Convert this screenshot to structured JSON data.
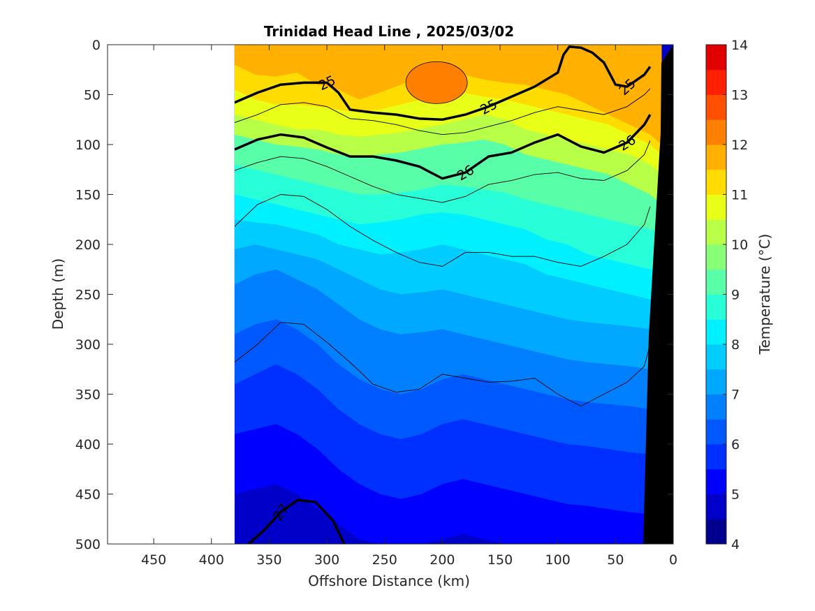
{
  "chart_data": {
    "type": "contour",
    "title": "Trinidad Head Line , 2025/03/02",
    "xlabel": "Offshore Distance (km)",
    "ylabel": "Depth (m)",
    "xlim": [
      490,
      0
    ],
    "ylim": [
      0,
      500
    ],
    "x_reversed": true,
    "y_reversed": true,
    "x_ticks": [
      450,
      400,
      350,
      300,
      250,
      200,
      150,
      100,
      50,
      0
    ],
    "y_ticks": [
      0,
      50,
      100,
      150,
      200,
      250,
      300,
      350,
      400,
      450,
      500
    ],
    "data_extent_x": [
      380,
      0
    ],
    "colorbar": {
      "label": "Temperature (°C)",
      "min": 4,
      "max": 14,
      "ticks": [
        4,
        5,
        6,
        7,
        8,
        9,
        10,
        11,
        12,
        13,
        14
      ],
      "levels": [
        4,
        4.5,
        5,
        5.5,
        6,
        6.5,
        7,
        7.5,
        8,
        8.5,
        9,
        9.5,
        10,
        10.5,
        11,
        11.5,
        12,
        12.5,
        13,
        13.5,
        14
      ],
      "colors": [
        "#00008f",
        "#0000c8",
        "#0000ff",
        "#0030ff",
        "#0058ff",
        "#0080ff",
        "#00a8ff",
        "#00ccff",
        "#00f0ff",
        "#28ffd8",
        "#58ffa8",
        "#88ff78",
        "#b8ff48",
        "#e8ff18",
        "#ffdc00",
        "#ffb000",
        "#ff8000",
        "#ff5000",
        "#ff2000",
        "#e00000",
        "#a00000"
      ]
    },
    "temperature_boundaries": [
      {
        "value": 11.5,
        "depths": [
          20,
          30,
          32,
          28,
          40,
          45,
          55,
          48,
          40,
          30,
          25,
          30,
          35,
          38,
          40,
          45,
          50,
          60,
          70,
          80,
          90,
          100
        ]
      },
      {
        "value": 11,
        "depths": [
          45,
          55,
          60,
          60,
          62,
          65,
          68,
          65,
          60,
          55,
          50,
          48,
          52,
          55,
          60,
          65,
          70,
          75,
          80,
          90,
          100,
          110
        ]
      },
      {
        "value": 10.5,
        "depths": [
          70,
          75,
          80,
          85,
          85,
          90,
          92,
          90,
          88,
          84,
          80,
          75,
          70,
          75,
          85,
          90,
          95,
          100,
          105,
          110,
          120,
          130
        ]
      },
      {
        "value": 10,
        "depths": [
          90,
          95,
          100,
          102,
          105,
          110,
          112,
          110,
          108,
          104,
          100,
          98,
          95,
          100,
          110,
          115,
          120,
          125,
          130,
          140,
          150,
          160
        ]
      },
      {
        "value": 9,
        "depths": [
          120,
          125,
          130,
          135,
          140,
          145,
          150,
          150,
          148,
          145,
          140,
          142,
          145,
          148,
          155,
          160,
          165,
          170,
          175,
          180,
          185,
          190
        ]
      },
      {
        "value": 8.5,
        "depths": [
          150,
          155,
          160,
          165,
          170,
          175,
          180,
          178,
          175,
          170,
          168,
          170,
          175,
          180,
          185,
          195,
          200,
          210,
          215,
          220,
          225,
          230
        ]
      },
      {
        "value": 8,
        "depths": [
          175,
          178,
          180,
          185,
          190,
          200,
          205,
          210,
          208,
          205,
          200,
          205,
          210,
          215,
          220,
          230,
          235,
          240,
          245,
          250,
          255,
          260
        ]
      },
      {
        "value": 7.5,
        "depths": [
          205,
          200,
          205,
          210,
          215,
          225,
          235,
          245,
          250,
          248,
          245,
          250,
          255,
          260,
          265,
          270,
          275,
          278,
          280,
          282,
          285,
          288
        ]
      },
      {
        "value": 7,
        "depths": [
          240,
          230,
          225,
          235,
          245,
          260,
          275,
          285,
          290,
          288,
          285,
          290,
          295,
          300,
          305,
          310,
          315,
          318,
          320,
          322,
          325,
          330
        ]
      },
      {
        "value": 6.5,
        "depths": [
          290,
          280,
          275,
          285,
          300,
          320,
          335,
          345,
          350,
          345,
          335,
          330,
          335,
          340,
          345,
          350,
          355,
          358,
          360,
          362,
          365,
          370
        ]
      },
      {
        "value": 6,
        "depths": [
          340,
          330,
          320,
          330,
          345,
          365,
          380,
          390,
          395,
          390,
          380,
          375,
          380,
          385,
          390,
          395,
          400,
          402,
          405,
          408,
          410,
          412
        ]
      },
      {
        "value": 5.5,
        "depths": [
          390,
          385,
          380,
          390,
          405,
          425,
          440,
          450,
          455,
          450,
          440,
          435,
          440,
          445,
          450,
          455,
          460,
          462,
          465,
          468,
          470,
          472
        ]
      },
      {
        "value": 5,
        "depths": [
          450,
          445,
          440,
          450,
          465,
          480,
          495,
          500,
          500,
          500,
          495,
          490,
          495,
          500,
          500,
          500,
          500,
          500,
          500,
          500,
          500,
          500
        ]
      }
    ],
    "boundary_x": [
      380,
      362,
      344,
      326,
      308,
      290,
      272,
      254,
      236,
      218,
      200,
      182,
      164,
      146,
      128,
      110,
      92,
      74,
      56,
      38,
      20,
      10
    ],
    "warm_core": {
      "x": 205,
      "depth": 38,
      "temperature": 12
    },
    "density_contours": [
      {
        "label": "25",
        "x": [
          380,
          360,
          340,
          320,
          300,
          290,
          280,
          260,
          240,
          220,
          200,
          180,
          160,
          140,
          120,
          100,
          95,
          90,
          80,
          70,
          60,
          50,
          40,
          25,
          20
        ],
        "depth": [
          58,
          48,
          40,
          38,
          38,
          48,
          65,
          68,
          70,
          74,
          75,
          70,
          62,
          52,
          42,
          28,
          10,
          2,
          3,
          8,
          18,
          40,
          42,
          30,
          22
        ]
      },
      {
        "label": "26",
        "x": [
          380,
          360,
          340,
          320,
          300,
          280,
          260,
          240,
          220,
          200,
          180,
          160,
          140,
          120,
          100,
          80,
          60,
          40,
          25,
          20
        ],
        "depth": [
          105,
          95,
          90,
          93,
          103,
          112,
          112,
          116,
          122,
          134,
          128,
          112,
          108,
          98,
          90,
          102,
          108,
          98,
          80,
          70
        ]
      },
      {
        "label": "27",
        "x": [
          368,
          355,
          340,
          325,
          310,
          295,
          285
        ],
        "depth": [
          500,
          487,
          468,
          456,
          458,
          476,
          500
        ]
      }
    ],
    "thin_contours": [
      {
        "x": [
          380,
          360,
          340,
          320,
          300,
          280,
          260,
          240,
          220,
          200,
          180,
          160,
          140,
          120,
          100,
          80,
          60,
          40,
          25,
          20
        ],
        "depth": [
          78,
          70,
          60,
          58,
          62,
          74,
          76,
          80,
          86,
          90,
          88,
          82,
          76,
          68,
          62,
          66,
          70,
          62,
          50,
          44
        ]
      },
      {
        "x": [
          380,
          360,
          340,
          320,
          300,
          280,
          260,
          240,
          220,
          200,
          180,
          160,
          140,
          120,
          100,
          80,
          60,
          40,
          25,
          20
        ],
        "depth": [
          126,
          118,
          112,
          114,
          122,
          132,
          142,
          150,
          154,
          158,
          152,
          140,
          136,
          130,
          128,
          134,
          136,
          126,
          110,
          96
        ]
      },
      {
        "x": [
          380,
          360,
          340,
          320,
          300,
          280,
          260,
          240,
          220,
          200,
          180,
          160,
          140,
          120,
          100,
          80,
          60,
          40,
          25,
          20
        ],
        "depth": [
          182,
          160,
          150,
          152,
          165,
          182,
          196,
          208,
          218,
          222,
          208,
          208,
          212,
          212,
          218,
          222,
          212,
          200,
          180,
          162
        ]
      },
      {
        "x": [
          380,
          360,
          340,
          320,
          300,
          280,
          260,
          240,
          220,
          200,
          180,
          160,
          140,
          120,
          100,
          80,
          60,
          40,
          25,
          20
        ],
        "depth": [
          318,
          300,
          278,
          280,
          298,
          318,
          340,
          348,
          345,
          330,
          334,
          338,
          337,
          334,
          350,
          362,
          350,
          338,
          322,
          300
        ]
      }
    ],
    "bathymetry": {
      "x": [
        18,
        0,
        0,
        12,
        22
      ],
      "depth": [
        500,
        0,
        500,
        90,
        500
      ]
    }
  }
}
